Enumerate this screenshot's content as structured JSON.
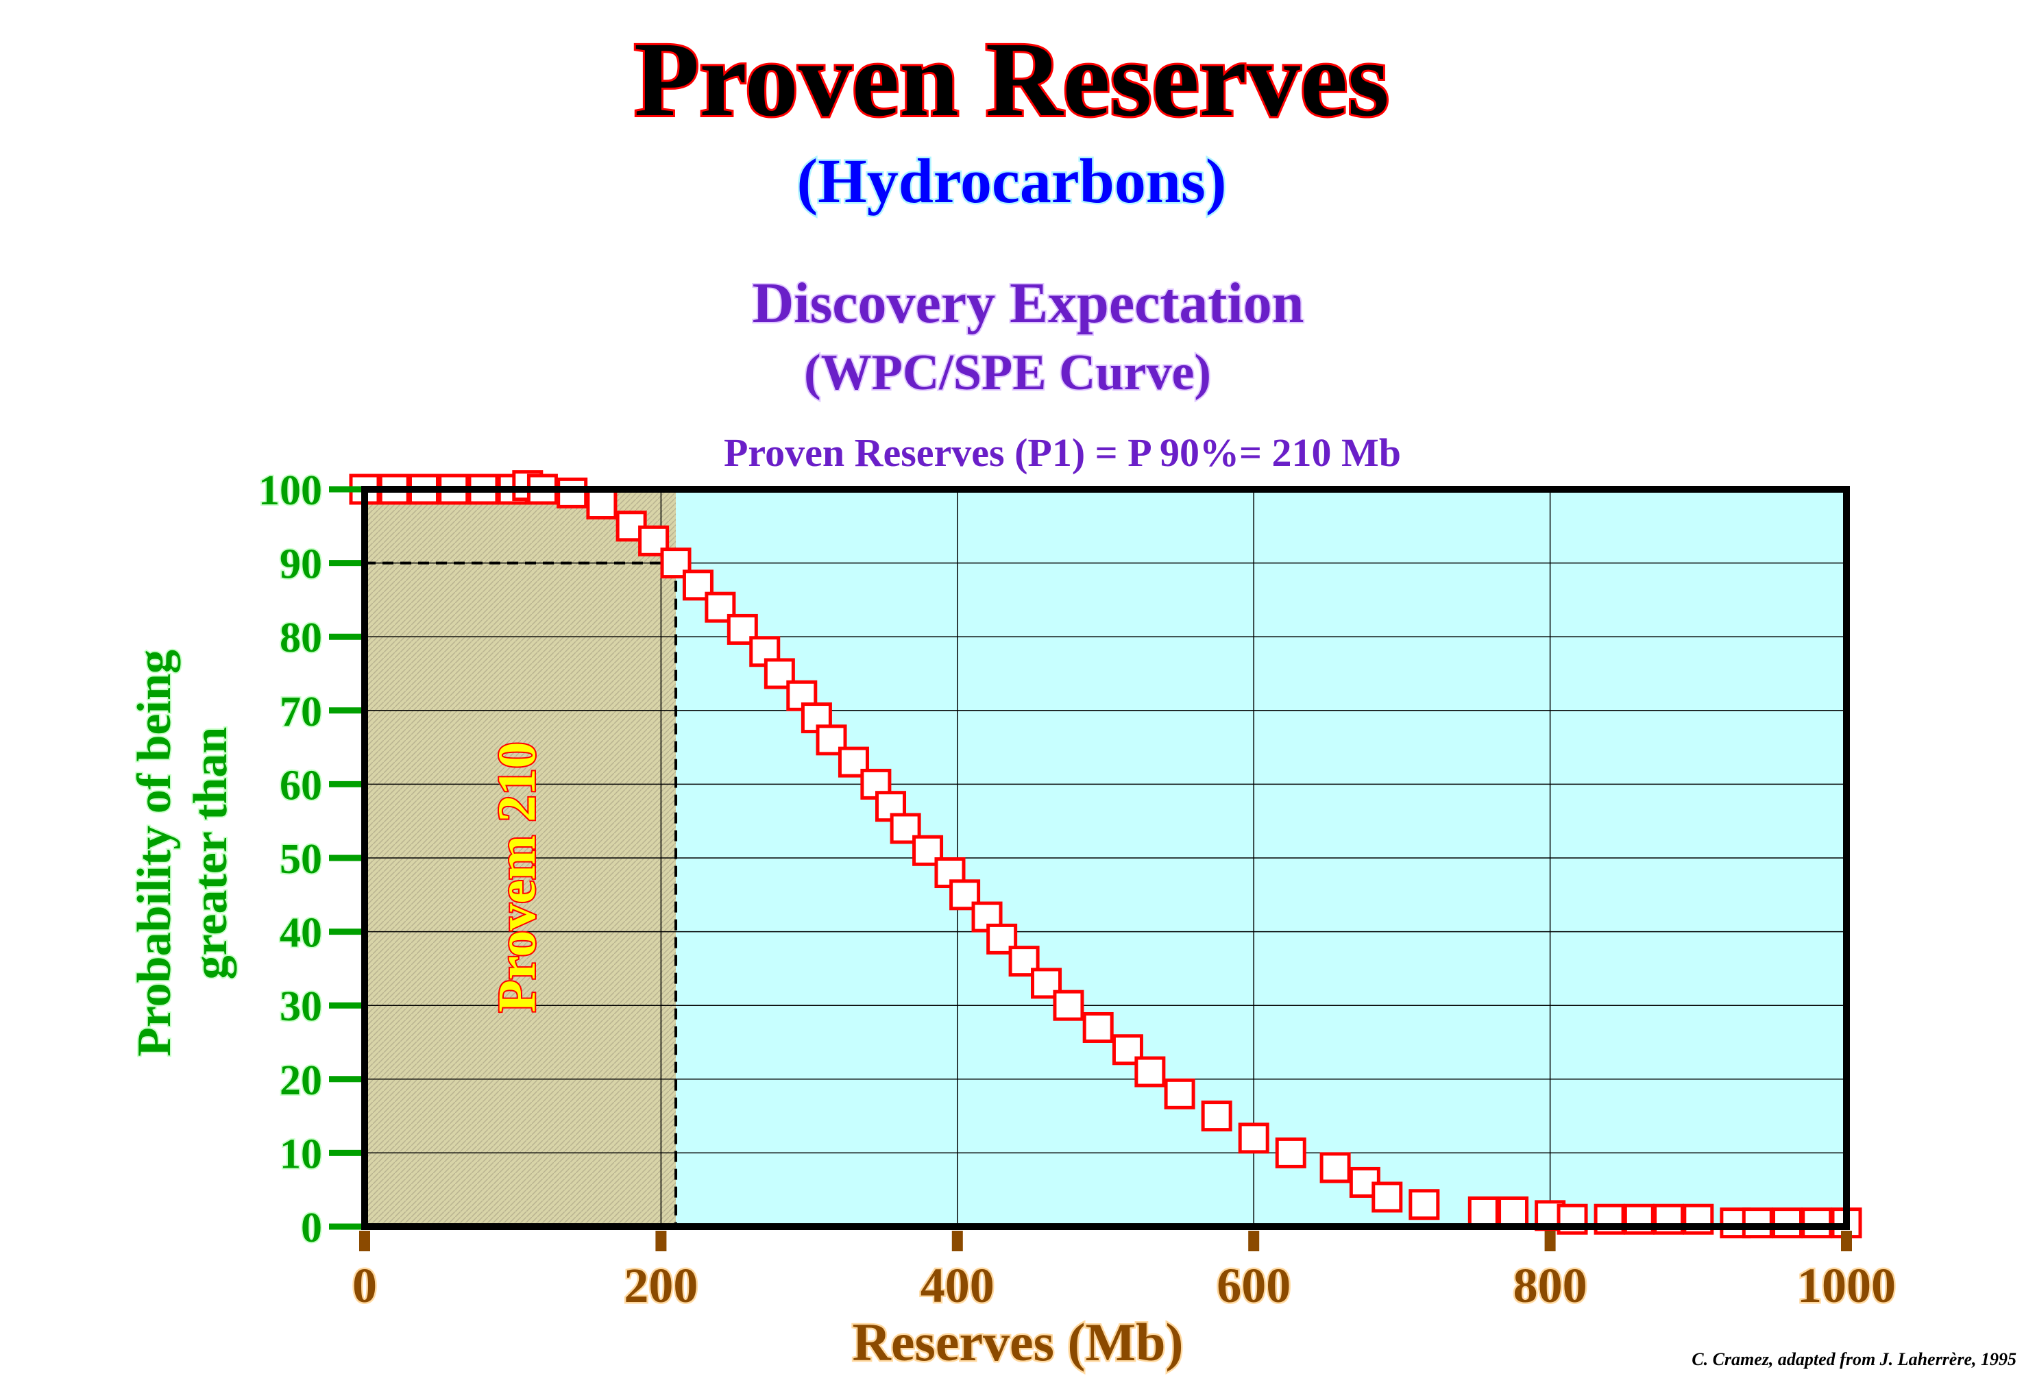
{
  "header": {
    "title": "Proven Reserves",
    "subtitle": "(Hydrocarbons)",
    "heading": "Discovery Expectation",
    "subheading": "(WPC/SPE Curve)",
    "equation": "Proven Reserves (P1) = P 90%= 210 Mb"
  },
  "annotation": {
    "proven_label": "Provem  210"
  },
  "credit": "C. Cramez, adapted from J. Laherrère, 1995",
  "colors": {
    "title_fill": "#000000",
    "title_outline": "#ff0000",
    "subtitle": "#0000ff",
    "heading": "#6a1fc8",
    "y_axis_text": "#00a000",
    "x_axis_text": "#8b4a00",
    "plot_background": "#c8ffff",
    "proven_area": "#d8d4a8",
    "marker_edge": "#ff0000",
    "proven_label_fill": "#ffff00"
  },
  "chart_data": {
    "type": "scatter",
    "title": "Proven Reserves",
    "xlabel": "Reserves (Mb)",
    "ylabel_lines": [
      "Probability of being",
      "greater than"
    ],
    "xlim": [
      0,
      1000
    ],
    "ylim": [
      0,
      100
    ],
    "x_ticks": [
      0,
      200,
      400,
      600,
      800,
      1000
    ],
    "y_ticks": [
      0,
      10,
      20,
      30,
      40,
      50,
      60,
      70,
      80,
      90,
      100
    ],
    "grid": true,
    "proven_reserves": 210,
    "p_level": 90,
    "series": [
      {
        "marker": "square",
        "x": [
          0,
          20,
          40,
          60,
          80,
          100,
          110,
          120,
          140,
          160,
          180,
          195,
          210,
          225,
          240,
          255,
          270,
          280,
          295,
          305,
          315,
          330,
          345,
          355,
          365,
          380,
          395,
          405,
          420,
          430,
          445,
          460,
          475,
          495,
          515,
          530,
          550,
          575,
          600,
          625,
          655,
          675,
          690,
          715,
          755,
          775,
          800,
          815,
          840,
          860,
          880,
          900,
          925,
          940,
          960,
          980,
          1000
        ],
        "y": [
          100,
          100,
          100,
          100,
          100,
          100,
          100.5,
          100,
          99.5,
          98,
          95,
          93,
          90,
          87,
          84,
          81,
          78,
          75,
          72,
          69,
          66,
          63,
          60,
          57,
          54,
          51,
          48,
          45,
          42,
          39,
          36,
          33,
          30,
          27,
          24,
          21,
          18,
          15,
          12,
          10,
          8,
          6,
          4,
          3,
          2,
          2,
          1.5,
          1,
          1,
          1,
          1,
          1,
          0.5,
          0.5,
          0.5,
          0.5,
          0.5
        ]
      }
    ]
  }
}
